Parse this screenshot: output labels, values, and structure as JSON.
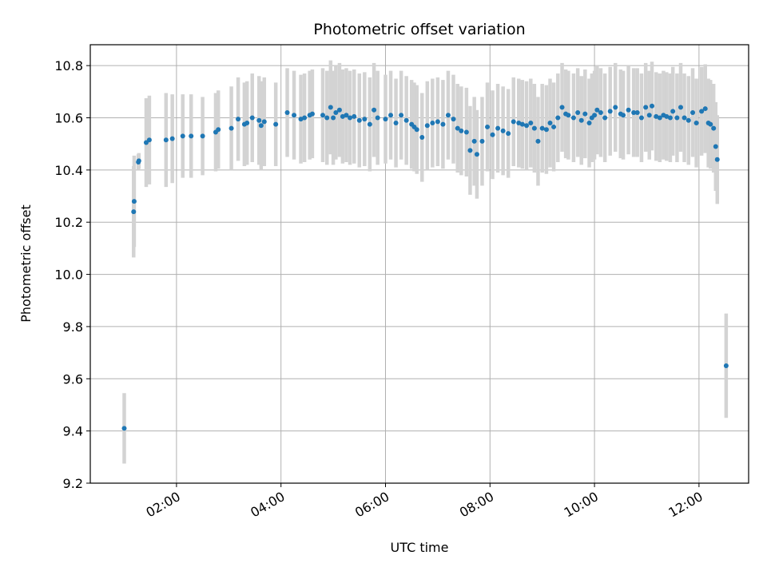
{
  "chart_data": {
    "type": "scatter",
    "title": "Photometric offset variation",
    "xlabel": "UTC time",
    "ylabel": "Photometric offset",
    "x_unit": "UTC hours",
    "xlim": [
      0.35,
      12.95
    ],
    "ylim": [
      9.2,
      10.88
    ],
    "yticks": [
      9.2,
      9.4,
      9.6,
      9.8,
      10.0,
      10.2,
      10.4,
      10.6,
      10.8
    ],
    "ytick_labels": [
      "9.2",
      "9.4",
      "9.6",
      "9.8",
      "10.0",
      "10.2",
      "10.4",
      "10.6",
      "10.8"
    ],
    "xticks": [
      2,
      4,
      6,
      8,
      10,
      12
    ],
    "xtick_labels": [
      "02:00",
      "04:00",
      "06:00",
      "08:00",
      "10:00",
      "12:00"
    ],
    "grid": true,
    "marker_color": "#1f77b4",
    "errorbar_color": "#d3d3d3",
    "series": [
      {
        "x": [
          1.0,
          1.18,
          1.19,
          1.27,
          1.28,
          1.42,
          1.48,
          1.8,
          1.92,
          2.12,
          2.28,
          2.5,
          2.75,
          2.8,
          3.05,
          3.18,
          3.3,
          3.35,
          3.45,
          3.58,
          3.62,
          3.68,
          3.9,
          4.12,
          4.25,
          4.38,
          4.45,
          4.55,
          4.6,
          4.8,
          4.88,
          4.95,
          5.0,
          5.05,
          5.12,
          5.18,
          5.25,
          5.32,
          5.4,
          5.5,
          5.6,
          5.7,
          5.78,
          5.85,
          6.0,
          6.1,
          6.2,
          6.3,
          6.4,
          6.5,
          6.55,
          6.6,
          6.7,
          6.8,
          6.9,
          7.0,
          7.1,
          7.2,
          7.3,
          7.38,
          7.45,
          7.55,
          7.62,
          7.7,
          7.75,
          7.85,
          7.95,
          8.05,
          8.15,
          8.25,
          8.35,
          8.45,
          8.55,
          8.62,
          8.7,
          8.78,
          8.85,
          8.92,
          9.0,
          9.08,
          9.15,
          9.22,
          9.3,
          9.38,
          9.45,
          9.5,
          9.6,
          9.68,
          9.75,
          9.82,
          9.9,
          9.95,
          10.0,
          10.05,
          10.12,
          10.2,
          10.3,
          10.4,
          10.5,
          10.55,
          10.65,
          10.75,
          10.82,
          10.9,
          10.98,
          11.05,
          11.1,
          11.18,
          11.25,
          11.32,
          11.38,
          11.45,
          11.5,
          11.58,
          11.65,
          11.72,
          11.8,
          11.88,
          11.95,
          12.05,
          12.12,
          12.18,
          12.22,
          12.28,
          12.32,
          12.35,
          12.52
        ],
        "y": [
          9.41,
          10.24,
          10.28,
          10.43,
          10.435,
          10.505,
          10.515,
          10.515,
          10.52,
          10.53,
          10.53,
          10.53,
          10.545,
          10.555,
          10.56,
          10.595,
          10.575,
          10.58,
          10.6,
          10.59,
          10.57,
          10.585,
          10.575,
          10.62,
          10.61,
          10.595,
          10.6,
          10.61,
          10.615,
          10.61,
          10.6,
          10.64,
          10.6,
          10.62,
          10.63,
          10.605,
          10.61,
          10.6,
          10.605,
          10.59,
          10.595,
          10.575,
          10.63,
          10.6,
          10.595,
          10.61,
          10.58,
          10.61,
          10.59,
          10.575,
          10.565,
          10.555,
          10.525,
          10.57,
          10.58,
          10.585,
          10.575,
          10.61,
          10.595,
          10.56,
          10.55,
          10.545,
          10.475,
          10.51,
          10.46,
          10.51,
          10.565,
          10.535,
          10.56,
          10.55,
          10.54,
          10.585,
          10.58,
          10.575,
          10.57,
          10.58,
          10.56,
          10.51,
          10.56,
          10.555,
          10.58,
          10.565,
          10.6,
          10.64,
          10.615,
          10.61,
          10.6,
          10.62,
          10.59,
          10.615,
          10.58,
          10.6,
          10.61,
          10.63,
          10.62,
          10.6,
          10.625,
          10.64,
          10.615,
          10.61,
          10.63,
          10.62,
          10.62,
          10.6,
          10.64,
          10.61,
          10.645,
          10.605,
          10.6,
          10.61,
          10.605,
          10.6,
          10.625,
          10.6,
          10.64,
          10.6,
          10.59,
          10.62,
          10.58,
          10.625,
          10.635,
          10.58,
          10.575,
          10.56,
          10.49,
          10.44,
          9.65
        ],
        "err": [
          0.135,
          0.175,
          0.175,
          0.03,
          0.03,
          0.17,
          0.17,
          0.18,
          0.17,
          0.16,
          0.16,
          0.15,
          0.15,
          0.15,
          0.16,
          0.16,
          0.16,
          0.16,
          0.17,
          0.17,
          0.17,
          0.17,
          0.16,
          0.17,
          0.17,
          0.17,
          0.17,
          0.17,
          0.17,
          0.18,
          0.18,
          0.18,
          0.18,
          0.18,
          0.18,
          0.18,
          0.18,
          0.18,
          0.18,
          0.18,
          0.18,
          0.18,
          0.18,
          0.18,
          0.17,
          0.17,
          0.17,
          0.17,
          0.17,
          0.17,
          0.17,
          0.17,
          0.17,
          0.17,
          0.17,
          0.17,
          0.17,
          0.17,
          0.17,
          0.17,
          0.17,
          0.17,
          0.17,
          0.17,
          0.17,
          0.17,
          0.17,
          0.17,
          0.17,
          0.17,
          0.17,
          0.17,
          0.17,
          0.17,
          0.17,
          0.17,
          0.17,
          0.17,
          0.17,
          0.17,
          0.17,
          0.17,
          0.17,
          0.17,
          0.17,
          0.17,
          0.17,
          0.17,
          0.17,
          0.17,
          0.17,
          0.17,
          0.17,
          0.17,
          0.17,
          0.17,
          0.17,
          0.17,
          0.17,
          0.17,
          0.17,
          0.17,
          0.17,
          0.17,
          0.17,
          0.17,
          0.17,
          0.17,
          0.17,
          0.17,
          0.17,
          0.17,
          0.17,
          0.17,
          0.17,
          0.17,
          0.17,
          0.17,
          0.17,
          0.17,
          0.17,
          0.17,
          0.17,
          0.17,
          0.17,
          0.17,
          0.2
        ]
      }
    ]
  }
}
